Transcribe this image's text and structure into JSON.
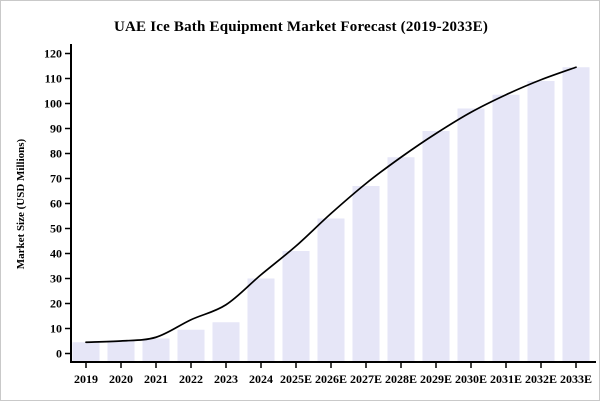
{
  "chart_data": {
    "type": "bar",
    "title": "UAE Ice Bath Equipment Market Forecast (2019-2033E)",
    "ylabel": "Market Size (USD Millions)",
    "xlabel": "",
    "categories": [
      "2019",
      "2020",
      "2021",
      "2022",
      "2023",
      "2024",
      "2025E",
      "2026E",
      "2027E",
      "2028E",
      "2029E",
      "2030E",
      "2031E",
      "2032E",
      "2033E"
    ],
    "values": [
      4.5,
      5,
      6,
      9.5,
      12.5,
      30,
      41,
      54,
      67,
      78.5,
      89,
      98,
      103.5,
      109,
      114.5
    ],
    "line_overlay": {
      "type": "smooth-trend-line",
      "values": [
        4.5,
        5,
        6.5,
        13.5,
        19.5,
        31.5,
        43,
        56,
        68,
        78.5,
        88,
        96.5,
        103.5,
        109.5,
        114.5
      ]
    },
    "yticks": [
      0,
      10,
      20,
      30,
      40,
      50,
      60,
      70,
      80,
      90,
      100,
      110,
      120
    ],
    "ylim": [
      0,
      120
    ],
    "grid": false,
    "legend": null,
    "bar_color": "#e6e6f7",
    "line_color": "#000000",
    "axis_color": "#000000",
    "text_color": "#000000"
  }
}
